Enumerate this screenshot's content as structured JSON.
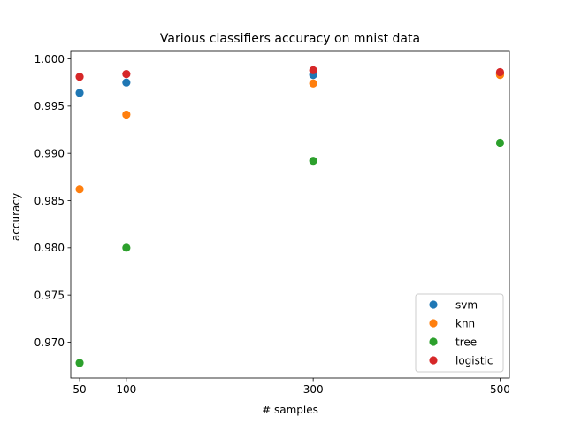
{
  "chart_data": {
    "type": "scatter",
    "title": "Various classifiers accuracy on mnist data",
    "xlabel": "# samples",
    "ylabel": "accuracy",
    "x": [
      50,
      100,
      300,
      500
    ],
    "xticks": [
      50,
      100,
      300,
      500
    ],
    "xtick_labels": [
      "50",
      "100",
      "300",
      "500"
    ],
    "xlim": [
      40.5,
      510
    ],
    "yticks": [
      0.97,
      0.975,
      0.98,
      0.985,
      0.99,
      0.995,
      1.0
    ],
    "ytick_labels": [
      "0.970",
      "0.975",
      "0.980",
      "0.985",
      "0.990",
      "0.995",
      "1.000"
    ],
    "ylim": [
      0.9662,
      1.0008
    ],
    "grid": false,
    "legend_position": "lower right",
    "series": [
      {
        "name": "svm",
        "color": "#1f77b4",
        "values": [
          0.9964,
          0.9975,
          0.9983,
          0.9984
        ]
      },
      {
        "name": "knn",
        "color": "#ff7f0e",
        "values": [
          0.9862,
          0.9941,
          0.9974,
          0.9983
        ]
      },
      {
        "name": "tree",
        "color": "#2ca02c",
        "values": [
          0.9678,
          0.98,
          0.9892,
          0.9911
        ]
      },
      {
        "name": "logistic",
        "color": "#d62728",
        "values": [
          0.9981,
          0.9984,
          0.9988,
          0.9986
        ]
      }
    ]
  }
}
